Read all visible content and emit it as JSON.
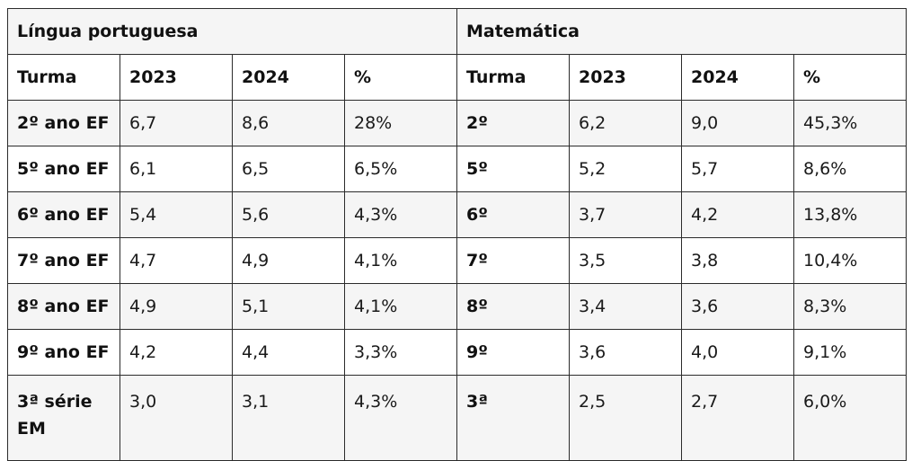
{
  "sections": {
    "left_title": "Língua portuguesa",
    "right_title": "Matemática"
  },
  "headers": [
    "Turma",
    "2023",
    "2024",
    "%",
    "Turma",
    "2023",
    "2024",
    "%"
  ],
  "rows": [
    [
      "2º ano EF",
      "6,7",
      "8,6",
      "28%",
      "2º",
      "6,2",
      "9,0",
      "45,3%"
    ],
    [
      "5º ano EF",
      "6,1",
      "6,5",
      "6,5%",
      "5º",
      "5,2",
      "5,7",
      "8,6%"
    ],
    [
      "6º ano EF",
      "5,4",
      "5,6",
      "4,3%",
      "6º",
      "3,7",
      "4,2",
      "13,8%"
    ],
    [
      "7º ano EF",
      "4,7",
      "4,9",
      "4,1%",
      "7º",
      "3,5",
      "3,8",
      "10,4%"
    ],
    [
      "8º ano EF",
      "4,9",
      "5,1",
      "4,1%",
      "8º",
      "3,4",
      "3,6",
      "8,3%"
    ],
    [
      "9º ano EF",
      "4,2",
      "4,4",
      "3,3%",
      "9º",
      "3,6",
      "4,0",
      "9,1%"
    ],
    [
      "3ª série EM",
      "3,0",
      "3,1",
      "4,3%",
      "3ª",
      "2,5",
      "2,7",
      "6,0%"
    ]
  ]
}
